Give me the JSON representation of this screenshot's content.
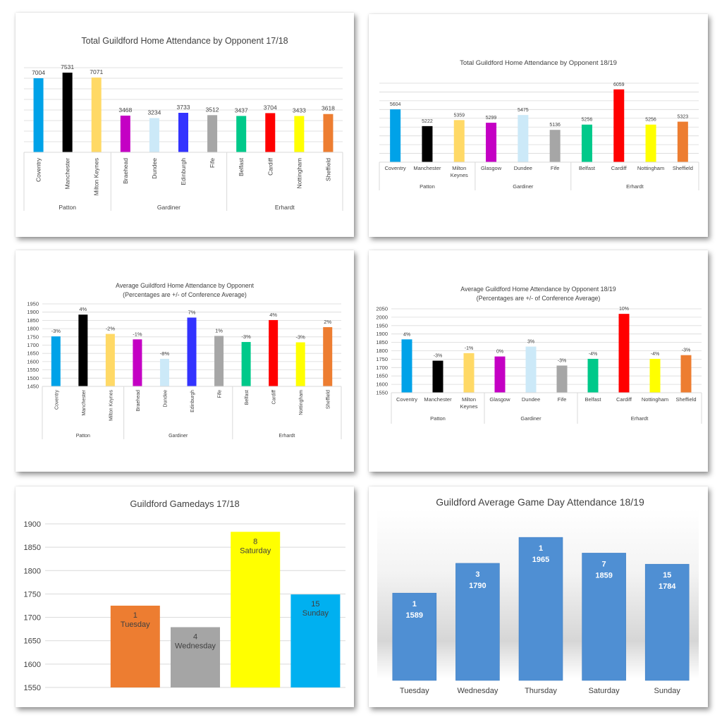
{
  "chart_data": [
    {
      "id": "c1",
      "type": "bar",
      "title": "Total Guildford Home Attendance by Opponent 17/18",
      "ylim": [
        0,
        8000
      ],
      "tick_step": 1000,
      "y_axis_labels": false,
      "rotated_labels": true,
      "grid": true,
      "groups": [
        {
          "name": "Patton",
          "size": 3
        },
        {
          "name": "Gardiner",
          "size": 4
        },
        {
          "name": "Erhardt",
          "size": 4
        }
      ],
      "bars": [
        {
          "category": "Coventry",
          "value": 7004,
          "label": "7004",
          "color": "#00a2e8"
        },
        {
          "category": "Manchester",
          "value": 7531,
          "label": "7531",
          "color": "#000000"
        },
        {
          "category": "Milton Keynes",
          "value": 7071,
          "label": "7071",
          "color": "#ffd966"
        },
        {
          "category": "Braehead",
          "value": 3468,
          "label": "3468",
          "color": "#c400c4"
        },
        {
          "category": "Dundee",
          "value": 3234,
          "label": "3234",
          "color": "#cce9f8"
        },
        {
          "category": "Edinburgh",
          "value": 3733,
          "label": "3733",
          "color": "#3333ff"
        },
        {
          "category": "Fife",
          "value": 3512,
          "label": "3512",
          "color": "#a6a6a6"
        },
        {
          "category": "Belfast",
          "value": 3437,
          "label": "3437",
          "color": "#00c98a"
        },
        {
          "category": "Cardiff",
          "value": 3704,
          "label": "3704",
          "color": "#ff0000"
        },
        {
          "category": "Nottingham",
          "value": 3433,
          "label": "3433",
          "color": "#ffff00"
        },
        {
          "category": "Sheffield",
          "value": 3618,
          "label": "3618",
          "color": "#ed7d31"
        }
      ]
    },
    {
      "id": "c2",
      "type": "bar",
      "title": "Total Guildford Home Attendance by Opponent 18/19",
      "ylim": [
        4400,
        6200
      ],
      "tick_step": 200,
      "y_axis_labels": false,
      "rotated_labels": false,
      "grid": true,
      "groups": [
        {
          "name": "Patton",
          "size": 3
        },
        {
          "name": "Gardiner",
          "size": 3
        },
        {
          "name": "Erhardt",
          "size": 4
        }
      ],
      "bars": [
        {
          "category": "Coventry",
          "value": 5604,
          "label": "5604",
          "color": "#00a2e8"
        },
        {
          "category": "Manchester",
          "value": 5222,
          "label": "5222",
          "color": "#000000"
        },
        {
          "category": "Milton Keynes",
          "value": 5359,
          "label": "5359",
          "color": "#ffd966"
        },
        {
          "category": "Glasgow",
          "value": 5299,
          "label": "5299",
          "color": "#c400c4"
        },
        {
          "category": "Dundee",
          "value": 5475,
          "label": "5475",
          "color": "#cce9f8"
        },
        {
          "category": "Fife",
          "value": 5136,
          "label": "5136",
          "color": "#a6a6a6"
        },
        {
          "category": "Belfast",
          "value": 5256,
          "label": "5256",
          "color": "#00c98a"
        },
        {
          "category": "Cardiff",
          "value": 6059,
          "label": "6059",
          "color": "#ff0000"
        },
        {
          "category": "Nottingham",
          "value": 5256,
          "label": "5256",
          "color": "#ffff00"
        },
        {
          "category": "Sheffield",
          "value": 5323,
          "label": "5323",
          "color": "#ed7d31"
        }
      ]
    },
    {
      "id": "c3",
      "type": "bar",
      "title": "Average Guildford Home Attendance by Opponent",
      "subtitle": "(Percentages are +/- of Conference Average)",
      "ylim": [
        1450,
        1950
      ],
      "tick_step": 50,
      "y_axis_labels": true,
      "rotated_labels": true,
      "grid": true,
      "groups": [
        {
          "name": "Patton",
          "size": 3
        },
        {
          "name": "Gardiner",
          "size": 4
        },
        {
          "name": "Erhardt",
          "size": 4
        }
      ],
      "bars": [
        {
          "category": "Coventry",
          "value": 1753,
          "label": "-3%",
          "color": "#00a2e8"
        },
        {
          "category": "Manchester",
          "value": 1885,
          "label": "4%",
          "color": "#000000"
        },
        {
          "category": "Milton Keynes",
          "value": 1768,
          "label": "-2%",
          "color": "#ffd966"
        },
        {
          "category": "Braehead",
          "value": 1735,
          "label": "-1%",
          "color": "#c400c4"
        },
        {
          "category": "Dundee",
          "value": 1617,
          "label": "-8%",
          "color": "#cce9f8"
        },
        {
          "category": "Edinburgh",
          "value": 1867,
          "label": "7%",
          "color": "#3333ff"
        },
        {
          "category": "Fife",
          "value": 1756,
          "label": "1%",
          "color": "#a6a6a6"
        },
        {
          "category": "Belfast",
          "value": 1719,
          "label": "-3%",
          "color": "#00c98a"
        },
        {
          "category": "Cardiff",
          "value": 1852,
          "label": "4%",
          "color": "#ff0000"
        },
        {
          "category": "Nottingham",
          "value": 1717,
          "label": "-3%",
          "color": "#ffff00"
        },
        {
          "category": "Sheffield",
          "value": 1809,
          "label": "2%",
          "color": "#ed7d31"
        }
      ]
    },
    {
      "id": "c4",
      "type": "bar",
      "title": "Average Guildford Home Attendance by Opponent 18/19",
      "subtitle": "(Percentages are +/- of Conference Average)",
      "ylim": [
        1550,
        2050
      ],
      "tick_step": 50,
      "y_axis_labels": true,
      "rotated_labels": false,
      "grid": true,
      "groups": [
        {
          "name": "Patton",
          "size": 3
        },
        {
          "name": "Gardiner",
          "size": 3
        },
        {
          "name": "Erhardt",
          "size": 4
        }
      ],
      "bars": [
        {
          "category": "Coventry",
          "value": 1868,
          "label": "4%",
          "color": "#00a2e8"
        },
        {
          "category": "Manchester",
          "value": 1741,
          "label": "-3%",
          "color": "#000000"
        },
        {
          "category": "Milton Keynes",
          "value": 1786,
          "label": "-1%",
          "color": "#ffd966"
        },
        {
          "category": "Glasgow",
          "value": 1766,
          "label": "0%",
          "color": "#c400c4"
        },
        {
          "category": "Dundee",
          "value": 1825,
          "label": "3%",
          "color": "#cce9f8"
        },
        {
          "category": "Fife",
          "value": 1712,
          "label": "-3%",
          "color": "#a6a6a6"
        },
        {
          "category": "Belfast",
          "value": 1752,
          "label": "-4%",
          "color": "#00c98a"
        },
        {
          "category": "Cardiff",
          "value": 2020,
          "label": "10%",
          "color": "#ff0000"
        },
        {
          "category": "Nottingham",
          "value": 1752,
          "label": "-4%",
          "color": "#ffff00"
        },
        {
          "category": "Sheffield",
          "value": 1774,
          "label": "-3%",
          "color": "#ed7d31"
        }
      ]
    },
    {
      "id": "c5",
      "type": "bar",
      "title": "Guildford Gamedays 17/18",
      "ylim": [
        1550,
        1900
      ],
      "tick_step": 50,
      "y_axis_labels": true,
      "grid": true,
      "slots": 5,
      "bars": [
        {
          "slot": 1,
          "games": "1",
          "day": "Tuesday",
          "value": 1725,
          "color": "#ed7d31"
        },
        {
          "slot": 2,
          "games": "4",
          "day": "Wednesday",
          "value": 1679,
          "color": "#a5a5a5"
        },
        {
          "slot": 3,
          "games": "8",
          "day": "Saturday",
          "value": 1883,
          "color": "#ffff00"
        },
        {
          "slot": 4,
          "games": "15",
          "day": "Sunday",
          "value": 1749,
          "color": "#00b0f0"
        }
      ]
    },
    {
      "id": "c6",
      "type": "bar",
      "title": "Guildford Average Game Day Attendance 18/19",
      "ylim": [
        1000,
        2000
      ],
      "grid": false,
      "bar_color": "#4f8fd3",
      "categories": [
        "Tuesday",
        "Wednesday",
        "Thursday",
        "Saturday",
        "Sunday"
      ],
      "games": [
        "1",
        "3",
        "1",
        "7",
        "15"
      ],
      "values": [
        1589,
        1790,
        1965,
        1859,
        1784
      ]
    }
  ]
}
